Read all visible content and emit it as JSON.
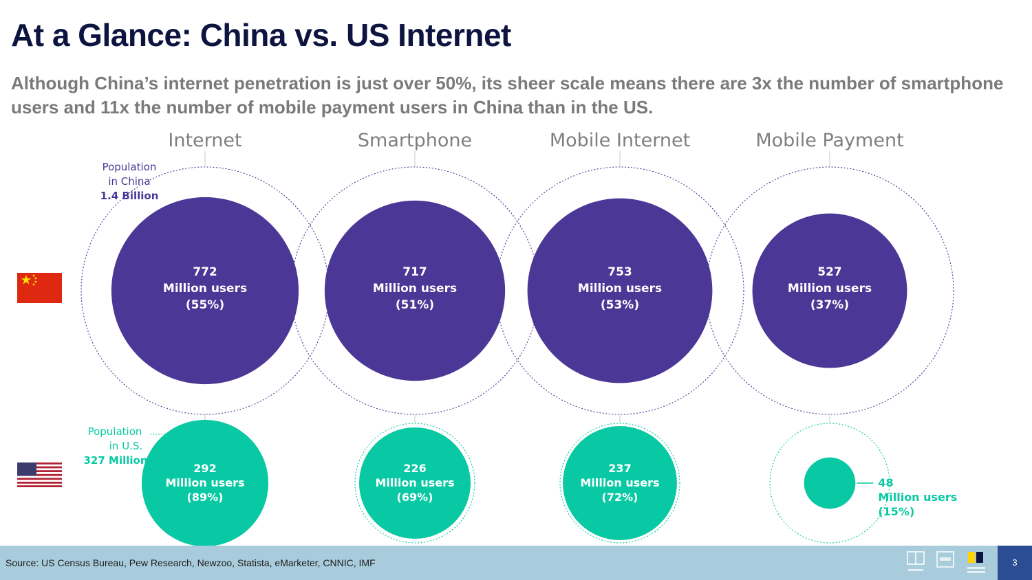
{
  "title": "At a Glance: China vs. US Internet",
  "subtitle": "Although China’s internet penetration is just over 50%, its sheer scale means there are 3x the number of smartphone users and 11x the number of mobile payment users in China than in the US.",
  "china_population": {
    "line1": "Population",
    "line2": "in China",
    "value": "1.4 Billion"
  },
  "us_population": {
    "line1": "Population",
    "line2": "in U.S.",
    "value": "327 Million"
  },
  "colors": {
    "china": "#4a3796",
    "us": "#08c9a3",
    "title": "#0d1440"
  },
  "chart_data": {
    "type": "bubble",
    "title": "At a Glance: China vs. US Internet",
    "categories": [
      "Internet",
      "Smartphone",
      "Mobile Internet",
      "Mobile Payment"
    ],
    "population_millions": {
      "china": 1400,
      "us": 327
    },
    "series": [
      {
        "name": "China",
        "flag": "china-flag-icon",
        "values": [
          772,
          717,
          753,
          527
        ],
        "value_labels": [
          "772",
          "717",
          "753",
          "527"
        ],
        "percent_labels": [
          "(55%)",
          "(51%)",
          "(53%)",
          "(37%)"
        ]
      },
      {
        "name": "US",
        "flag": "us-flag-icon",
        "values": [
          292,
          226,
          237,
          48
        ],
        "value_labels": [
          "292",
          "226",
          "237",
          "48"
        ],
        "percent_labels": [
          "(89%)",
          "(69%)",
          "(72%)",
          "(15%)"
        ]
      }
    ],
    "unit_label": "Million users"
  },
  "footer": {
    "source": "Source: US Census Bureau, Pew Research, Newzoo, Statista, eMarketer, CNNIC, IMF",
    "page_number": "3"
  }
}
